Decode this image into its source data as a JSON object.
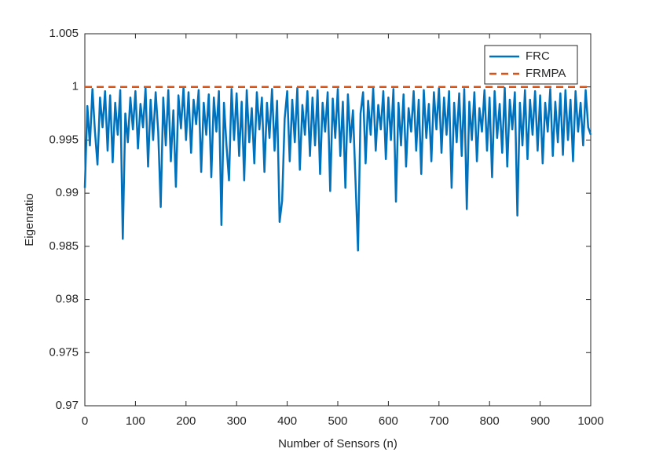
{
  "chart_data": {
    "type": "line",
    "xlabel": "Number of Sensors (n)",
    "ylabel": "Eigenratio",
    "xlim": [
      0,
      1000
    ],
    "xticks": [
      0,
      100,
      200,
      300,
      400,
      500,
      600,
      700,
      800,
      900,
      1000
    ],
    "ylim": [
      0.97,
      1.005
    ],
    "yticks": [
      0.97,
      0.975,
      0.98,
      0.985,
      0.99,
      0.995,
      1,
      1.005
    ],
    "legend": "northeast",
    "series": [
      {
        "name": "FRC",
        "color": "#0072bd",
        "dash": false,
        "x": [
          0,
          5,
          10,
          15,
          20,
          25,
          30,
          35,
          40,
          45,
          50,
          55,
          60,
          65,
          70,
          75,
          80,
          85,
          90,
          95,
          100,
          105,
          110,
          115,
          120,
          125,
          130,
          135,
          140,
          145,
          150,
          155,
          160,
          165,
          170,
          175,
          180,
          185,
          190,
          195,
          200,
          205,
          210,
          215,
          220,
          225,
          230,
          235,
          240,
          245,
          250,
          255,
          260,
          265,
          270,
          275,
          280,
          285,
          290,
          295,
          300,
          305,
          310,
          315,
          320,
          325,
          330,
          335,
          340,
          345,
          350,
          355,
          360,
          365,
          370,
          375,
          380,
          385,
          390,
          395,
          400,
          405,
          410,
          415,
          420,
          425,
          430,
          435,
          440,
          445,
          450,
          455,
          460,
          465,
          470,
          475,
          480,
          485,
          490,
          495,
          500,
          505,
          510,
          515,
          520,
          525,
          530,
          535,
          540,
          545,
          550,
          555,
          560,
          565,
          570,
          575,
          580,
          585,
          590,
          595,
          600,
          605,
          610,
          615,
          620,
          625,
          630,
          635,
          640,
          645,
          650,
          655,
          660,
          665,
          670,
          675,
          680,
          685,
          690,
          695,
          700,
          705,
          710,
          715,
          720,
          725,
          730,
          735,
          740,
          745,
          750,
          755,
          760,
          765,
          770,
          775,
          780,
          785,
          790,
          795,
          800,
          805,
          810,
          815,
          820,
          825,
          830,
          835,
          840,
          845,
          850,
          855,
          860,
          865,
          870,
          875,
          880,
          885,
          890,
          895,
          900,
          905,
          910,
          915,
          920,
          925,
          930,
          935,
          940,
          945,
          950,
          955,
          960,
          965,
          970,
          975,
          980,
          985,
          990,
          995,
          1000
        ],
        "values": [
          0.9905,
          0.9982,
          0.9945,
          0.9998,
          0.9958,
          0.9927,
          0.999,
          0.9962,
          0.9996,
          0.994,
          0.9992,
          0.9929,
          0.9985,
          0.9955,
          0.9997,
          0.9857,
          0.9975,
          0.9948,
          0.999,
          0.996,
          0.9996,
          0.9942,
          0.9984,
          0.9962,
          0.9999,
          0.9925,
          0.9988,
          0.995,
          0.9995,
          0.9958,
          0.9887,
          0.999,
          0.9945,
          0.9997,
          0.993,
          0.9978,
          0.9906,
          0.9992,
          0.9961,
          0.9999,
          0.995,
          0.9995,
          0.9938,
          0.9988,
          0.9965,
          0.9997,
          0.992,
          0.9985,
          0.9955,
          0.9993,
          0.9915,
          0.999,
          0.9958,
          0.9996,
          0.987,
          0.9985,
          0.9945,
          0.9912,
          0.9998,
          0.995,
          0.9994,
          0.9935,
          0.9986,
          0.9912,
          0.9997,
          0.9948,
          0.998,
          0.9928,
          0.9995,
          0.996,
          0.999,
          0.992,
          0.9985,
          0.9952,
          0.9998,
          0.994,
          0.9987,
          0.9873,
          0.9893,
          0.997,
          0.9996,
          0.993,
          0.9988,
          0.9948,
          0.9999,
          0.9922,
          0.9983,
          0.9955,
          0.9996,
          0.9935,
          0.999,
          0.9945,
          0.9997,
          0.9918,
          0.9985,
          0.9958,
          0.9995,
          0.9902,
          0.9989,
          0.9952,
          0.9998,
          0.9935,
          0.9986,
          0.9905,
          0.9993,
          0.9948,
          0.9978,
          0.9912,
          0.9846,
          0.9975,
          0.9995,
          0.9928,
          0.9987,
          0.9955,
          0.9999,
          0.994,
          0.9983,
          0.996,
          0.9996,
          0.9932,
          0.999,
          0.995,
          0.9998,
          0.9892,
          0.9985,
          0.9945,
          0.9993,
          0.9925,
          0.998,
          0.9958,
          0.9996,
          0.994,
          0.9988,
          0.9918,
          0.9997,
          0.9952,
          0.9984,
          0.993,
          0.9995,
          0.996,
          0.9999,
          0.9938,
          0.999,
          0.9955,
          0.9996,
          0.9905,
          0.9985,
          0.9948,
          0.9994,
          0.9935,
          0.9998,
          0.9885,
          0.9986,
          0.995,
          0.9995,
          0.993,
          0.998,
          0.9958,
          0.9997,
          0.994,
          0.999,
          0.9915,
          0.9996,
          0.9952,
          0.9984,
          0.9938,
          0.9999,
          0.9925,
          0.9988,
          0.996,
          0.9995,
          0.9879,
          0.9985,
          0.9945,
          0.9997,
          0.9932,
          0.9988,
          0.9955,
          0.9996,
          0.994,
          0.9992,
          0.9928,
          0.9985,
          0.9958,
          0.9998,
          0.9935,
          0.9986,
          0.9948,
          0.9994,
          0.9936,
          0.9997,
          0.995,
          0.9988,
          0.993,
          0.9996,
          0.9958,
          0.9985,
          0.9945,
          0.9997,
          0.9962,
          0.9955
        ]
      },
      {
        "name": "FRMPA",
        "color": "#d95319",
        "dash": true,
        "x": [
          0,
          1000
        ],
        "values": [
          1,
          1
        ]
      }
    ]
  }
}
